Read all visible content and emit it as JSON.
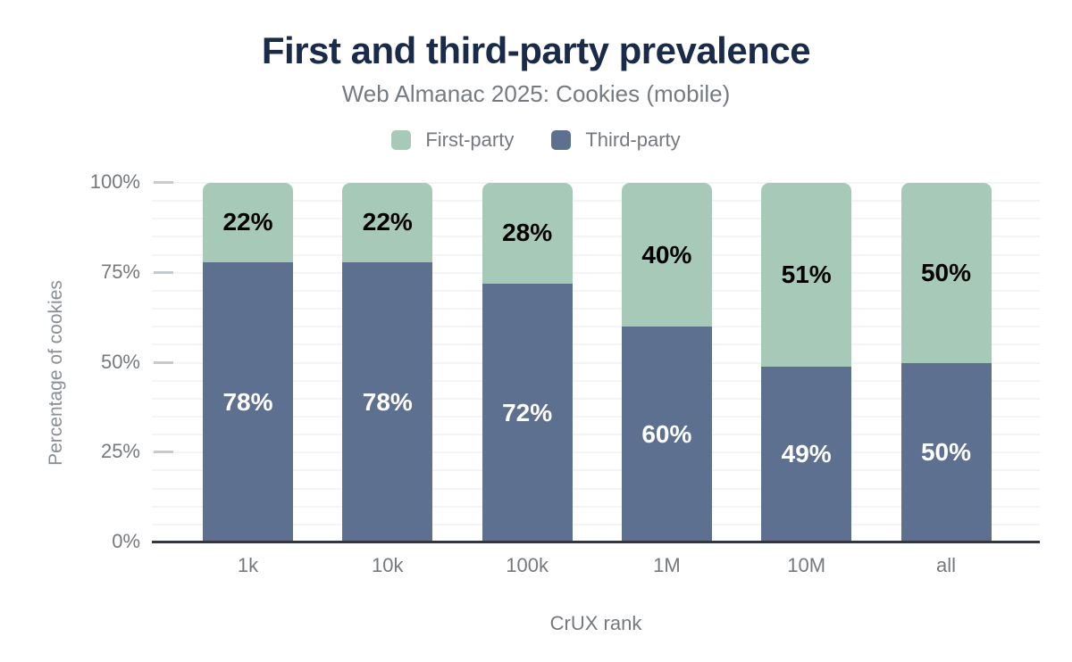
{
  "title": "First and third-party prevalence",
  "subtitle": "Web Almanac 2025: Cookies (mobile)",
  "legend": {
    "items": [
      {
        "label": "First-party",
        "color": "#a6c9b8"
      },
      {
        "label": "Third-party",
        "color": "#5e7090"
      }
    ]
  },
  "chart_data": {
    "type": "bar",
    "stacked": true,
    "title": "First and third-party prevalence",
    "subtitle": "Web Almanac 2025: Cookies (mobile)",
    "xlabel": "CrUX rank",
    "ylabel": "Percentage of cookies",
    "categories": [
      "1k",
      "10k",
      "100k",
      "1M",
      "10M",
      "all"
    ],
    "series": [
      {
        "name": "Third-party",
        "color": "#5e7090",
        "values": [
          78,
          78,
          72,
          60,
          49,
          50
        ],
        "data_labels": [
          "78%",
          "78%",
          "72%",
          "60%",
          "49%",
          "50%"
        ],
        "label_color": "#ffffff"
      },
      {
        "name": "First-party",
        "color": "#a6c9b8",
        "values": [
          22,
          22,
          28,
          40,
          51,
          50
        ],
        "data_labels": [
          "22%",
          "22%",
          "28%",
          "40%",
          "51%",
          "50%"
        ],
        "label_color": "#000000"
      }
    ],
    "ylim": [
      0,
      100
    ],
    "yticks": [
      {
        "value": 0,
        "label": "0%"
      },
      {
        "value": 25,
        "label": "25%"
      },
      {
        "value": 50,
        "label": "50%"
      },
      {
        "value": 75,
        "label": "75%"
      },
      {
        "value": 100,
        "label": "100%"
      }
    ],
    "minor_grid_step": 5,
    "grid": true,
    "legend_position": "top"
  },
  "colors": {
    "title": "#1a2b49",
    "text_muted": "#75797e",
    "grid": "#f2f4f5",
    "tick": "#c6cbcf",
    "axis_line": "#32373d",
    "background": "#ffffff"
  }
}
